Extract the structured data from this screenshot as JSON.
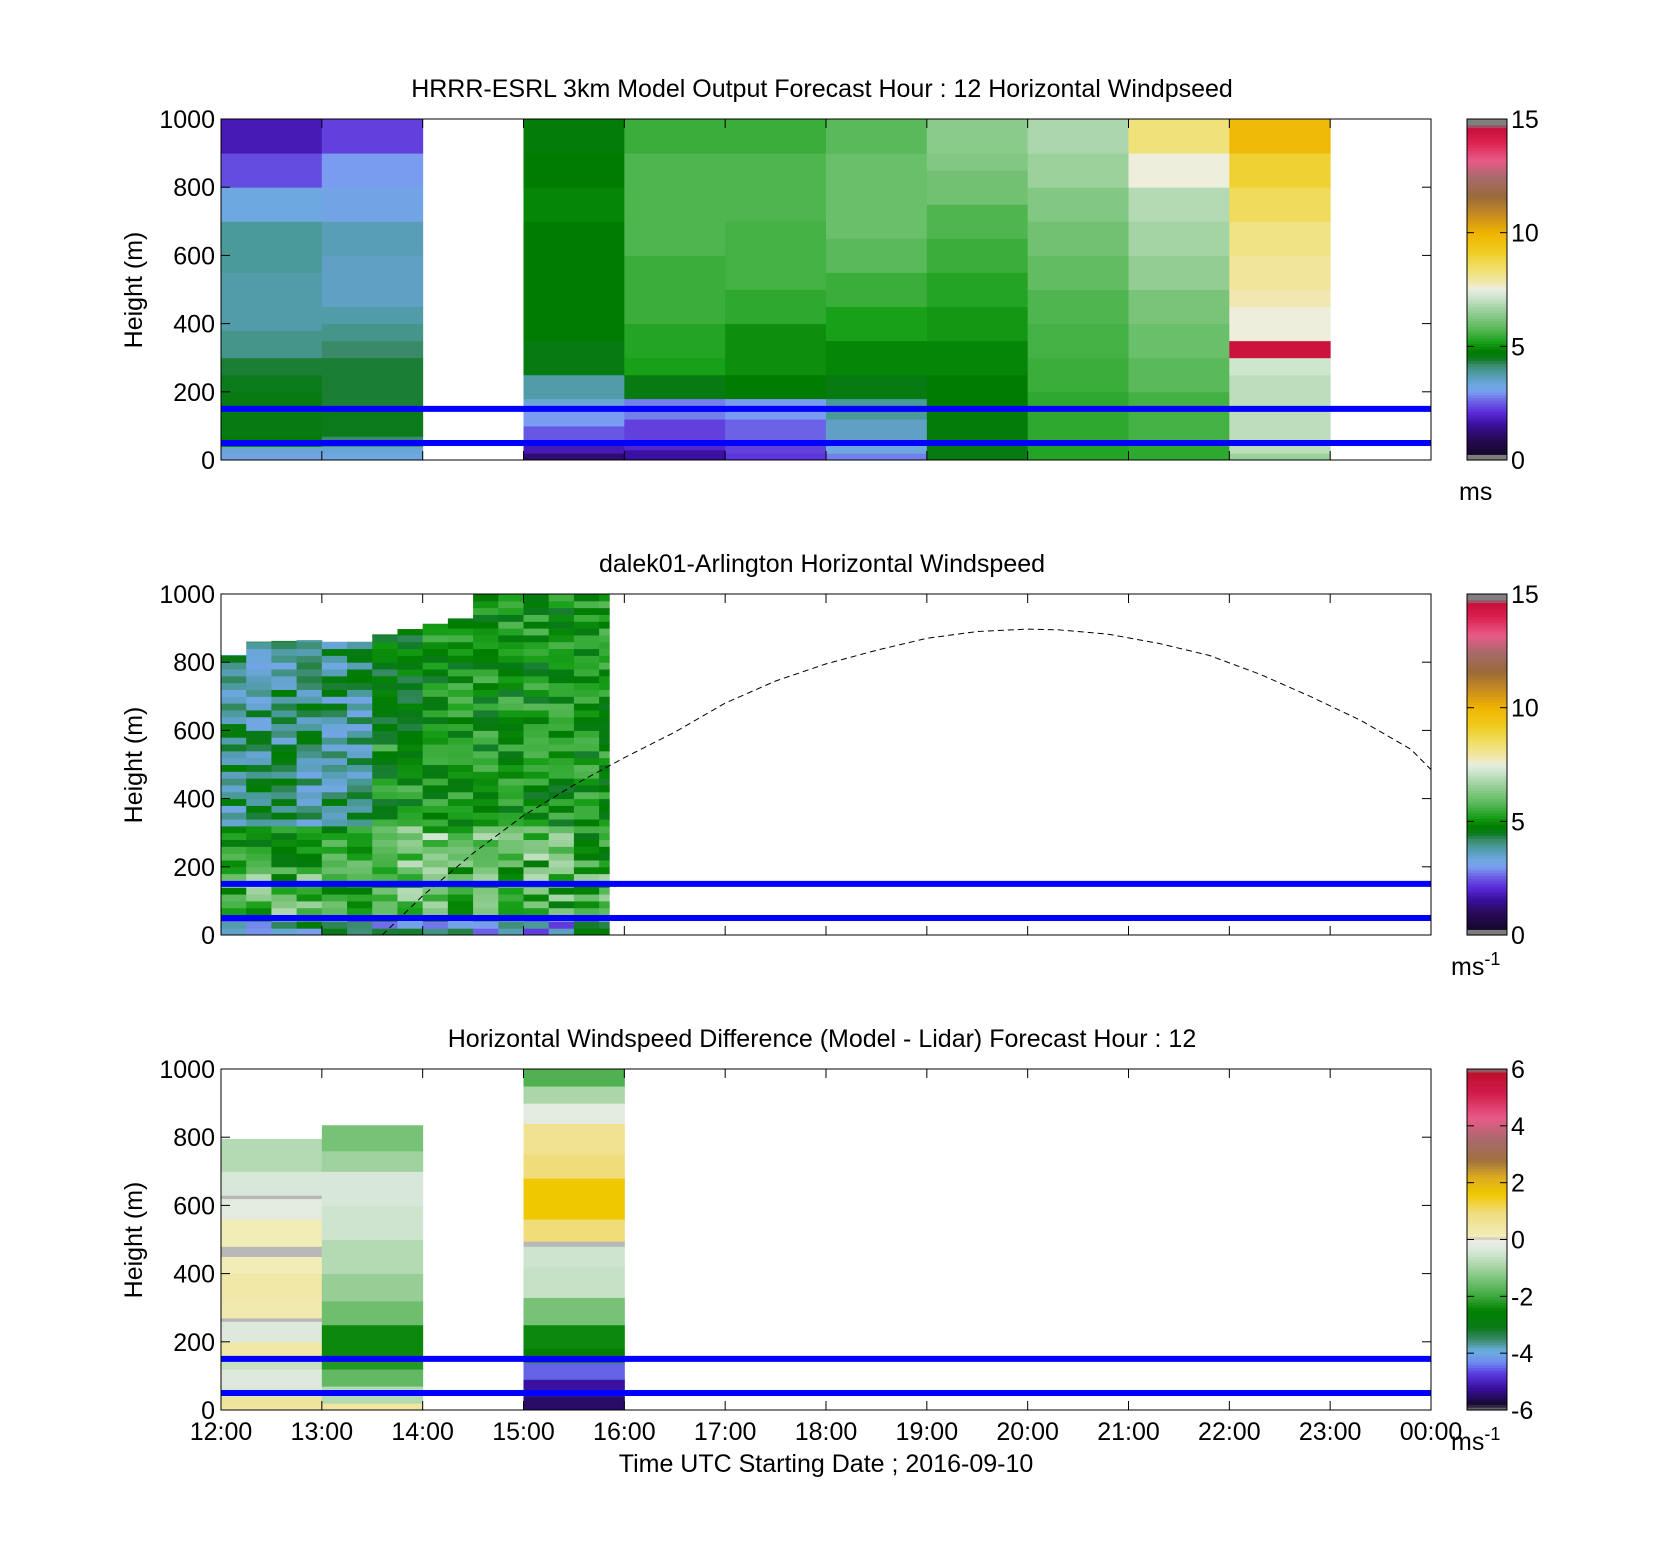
{
  "figure": {
    "xlabel": "Time UTC  Starting Date ; 2016-09-10",
    "time_ticks": [
      "12:00",
      "13:00",
      "14:00",
      "15:00",
      "16:00",
      "17:00",
      "18:00",
      "19:00",
      "20:00",
      "21:00",
      "22:00",
      "23:00",
      "00:00"
    ]
  },
  "chart_data": [
    {
      "type": "heatmap",
      "id": "model",
      "title": "HRRR-ESRL 3km Model Output   Forecast Hour : 12 Horizontal Windpseed",
      "ylabel": "Height (m)",
      "ylim": [
        0,
        1000
      ],
      "yticks": [
        "0",
        "200",
        "400",
        "600",
        "800",
        "1000"
      ],
      "x_range_hours_utc": [
        12,
        24
      ],
      "colorbar": {
        "ticks": [
          "0",
          "5",
          "10",
          "15"
        ],
        "range": [
          0,
          15
        ],
        "unit": "ms",
        "unit_sup": ""
      },
      "reference_lines_m": [
        150,
        50
      ],
      "columns": [
        {
          "x0": 12,
          "x1": 13,
          "cells": [
            [
              0,
              20,
              3.2
            ],
            [
              20,
              40,
              3.4
            ],
            [
              40,
              70,
              4.8
            ],
            [
              70,
              120,
              4.6
            ],
            [
              120,
              200,
              4.6
            ],
            [
              200,
              250,
              4.5
            ],
            [
              250,
              300,
              4.4
            ],
            [
              300,
              380,
              4.0
            ],
            [
              380,
              450,
              3.8
            ],
            [
              450,
              550,
              3.8
            ],
            [
              550,
              700,
              3.9
            ],
            [
              700,
              800,
              3.3
            ],
            [
              800,
              900,
              2.4
            ],
            [
              900,
              1000,
              1.8
            ]
          ]
        },
        {
          "x0": 13,
          "x1": 14,
          "cells": [
            [
              0,
              20,
              3.3
            ],
            [
              20,
              40,
              3.4
            ],
            [
              40,
              70,
              4.2
            ],
            [
              70,
              150,
              4.5
            ],
            [
              150,
              200,
              4.4
            ],
            [
              200,
              300,
              4.4
            ],
            [
              300,
              350,
              4.2
            ],
            [
              350,
              400,
              4.0
            ],
            [
              400,
              450,
              3.8
            ],
            [
              450,
              600,
              3.6
            ],
            [
              600,
              700,
              3.7
            ],
            [
              700,
              800,
              3.2
            ],
            [
              800,
              900,
              3.0
            ],
            [
              900,
              1000,
              2.3
            ]
          ]
        },
        {
          "x0": 15,
          "x1": 16,
          "cells": [
            [
              0,
              20,
              1.2
            ],
            [
              20,
              60,
              1.8
            ],
            [
              60,
              100,
              2.5
            ],
            [
              100,
              150,
              3.0
            ],
            [
              150,
              180,
              3.4
            ],
            [
              180,
              250,
              3.8
            ],
            [
              250,
              350,
              4.6
            ],
            [
              350,
              450,
              4.8
            ],
            [
              450,
              550,
              4.8
            ],
            [
              550,
              700,
              4.8
            ],
            [
              700,
              800,
              4.9
            ],
            [
              800,
              900,
              4.8
            ],
            [
              900,
              1000,
              4.7
            ]
          ]
        },
        {
          "x0": 16,
          "x1": 17,
          "cells": [
            [
              0,
              30,
              1.6
            ],
            [
              30,
              60,
              2.0
            ],
            [
              60,
              120,
              2.3
            ],
            [
              120,
              180,
              2.8
            ],
            [
              180,
              250,
              4.6
            ],
            [
              250,
              300,
              5.2
            ],
            [
              300,
              400,
              5.3
            ],
            [
              400,
              500,
              5.5
            ],
            [
              500,
              600,
              5.5
            ],
            [
              600,
              700,
              5.7
            ],
            [
              700,
              800,
              5.7
            ],
            [
              800,
              900,
              5.7
            ],
            [
              900,
              1000,
              5.5
            ]
          ]
        },
        {
          "x0": 17,
          "x1": 18,
          "cells": [
            [
              0,
              20,
              2.2
            ],
            [
              20,
              60,
              2.3
            ],
            [
              60,
              120,
              2.6
            ],
            [
              120,
              180,
              3.0
            ],
            [
              180,
              250,
              4.8
            ],
            [
              250,
              300,
              5.0
            ],
            [
              300,
              400,
              5.0
            ],
            [
              400,
              500,
              5.4
            ],
            [
              500,
              600,
              5.6
            ],
            [
              600,
              700,
              5.6
            ],
            [
              700,
              800,
              5.7
            ],
            [
              800,
              900,
              5.7
            ],
            [
              900,
              1000,
              5.5
            ]
          ]
        },
        {
          "x0": 18,
          "x1": 19,
          "cells": [
            [
              0,
              20,
              2.8
            ],
            [
              20,
              60,
              3.3
            ],
            [
              60,
              120,
              3.6
            ],
            [
              120,
              180,
              3.9
            ],
            [
              180,
              250,
              4.6
            ],
            [
              250,
              350,
              4.9
            ],
            [
              350,
              450,
              5.2
            ],
            [
              450,
              550,
              5.5
            ],
            [
              550,
              650,
              5.8
            ],
            [
              650,
              750,
              6.0
            ],
            [
              750,
              900,
              6.0
            ],
            [
              900,
              1000,
              5.8
            ]
          ]
        },
        {
          "x0": 19,
          "x1": 20,
          "cells": [
            [
              0,
              50,
              4.6
            ],
            [
              50,
              150,
              4.7
            ],
            [
              150,
              250,
              4.8
            ],
            [
              250,
              350,
              4.9
            ],
            [
              350,
              450,
              5.1
            ],
            [
              450,
              550,
              5.3
            ],
            [
              550,
              650,
              5.5
            ],
            [
              650,
              750,
              5.7
            ],
            [
              750,
              850,
              6.1
            ],
            [
              850,
              900,
              6.3
            ],
            [
              900,
              1000,
              6.4
            ]
          ]
        },
        {
          "x0": 20,
          "x1": 21,
          "cells": [
            [
              0,
              50,
              5.3
            ],
            [
              50,
              200,
              5.4
            ],
            [
              200,
              300,
              5.5
            ],
            [
              300,
              400,
              5.6
            ],
            [
              400,
              500,
              5.7
            ],
            [
              500,
              600,
              5.9
            ],
            [
              600,
              700,
              6.1
            ],
            [
              700,
              800,
              6.3
            ],
            [
              800,
              900,
              6.6
            ],
            [
              900,
              1000,
              6.8
            ]
          ]
        },
        {
          "x0": 21,
          "x1": 22,
          "cells": [
            [
              0,
              50,
              5.4
            ],
            [
              50,
              200,
              5.6
            ],
            [
              200,
              300,
              5.8
            ],
            [
              300,
              400,
              6.0
            ],
            [
              400,
              500,
              6.2
            ],
            [
              500,
              600,
              6.5
            ],
            [
              600,
              700,
              6.7
            ],
            [
              700,
              800,
              6.9
            ],
            [
              800,
              900,
              7.6
            ],
            [
              900,
              1000,
              8.3
            ]
          ]
        },
        {
          "x0": 22,
          "x1": 23,
          "cells": [
            [
              0,
              20,
              6.6
            ],
            [
              20,
              150,
              7.0
            ],
            [
              150,
              250,
              7.0
            ],
            [
              250,
              300,
              7.2
            ],
            [
              300,
              350,
              14.5
            ],
            [
              350,
              450,
              7.6
            ],
            [
              450,
              500,
              7.8
            ],
            [
              500,
              600,
              8.0
            ],
            [
              600,
              700,
              8.2
            ],
            [
              700,
              800,
              8.6
            ],
            [
              800,
              900,
              9.0
            ],
            [
              900,
              1000,
              9.8
            ]
          ]
        }
      ]
    },
    {
      "type": "heatmap",
      "id": "lidar",
      "title": "dalek01-Arlington  Horizontal Windspeed",
      "ylabel": "Height (m)",
      "ylim": [
        0,
        1000
      ],
      "yticks": [
        "0",
        "200",
        "400",
        "600",
        "800",
        "1000"
      ],
      "x_range_hours_utc": [
        12,
        24
      ],
      "colorbar": {
        "ticks": [
          "0",
          "5",
          "10",
          "15"
        ],
        "range": [
          0,
          15
        ],
        "unit": "ms",
        "unit_sup": "-1"
      },
      "reference_lines_m": [
        150,
        50
      ],
      "data_extent": {
        "x_hours_utc": [
          12,
          15.85
        ]
      },
      "top_edge_profile": [
        [
          12,
          800
        ],
        [
          12.35,
          860
        ],
        [
          12.9,
          865
        ],
        [
          13.1,
          860
        ],
        [
          13.4,
          860
        ],
        [
          13.6,
          880
        ],
        [
          14.0,
          905
        ],
        [
          14.4,
          930
        ],
        [
          14.6,
          1000
        ],
        [
          15.85,
          1000
        ]
      ],
      "dashed_curve": [
        [
          13.6,
          0
        ],
        [
          14.0,
          115
        ],
        [
          14.5,
          240
        ],
        [
          15.0,
          350
        ],
        [
          15.5,
          440
        ],
        [
          16.0,
          520
        ],
        [
          16.5,
          595
        ],
        [
          17.0,
          680
        ],
        [
          17.5,
          745
        ],
        [
          18.0,
          795
        ],
        [
          18.5,
          835
        ],
        [
          19.0,
          870
        ],
        [
          19.5,
          890
        ],
        [
          20.0,
          897
        ],
        [
          20.3,
          895
        ],
        [
          20.8,
          882
        ],
        [
          21.3,
          855
        ],
        [
          21.8,
          820
        ],
        [
          22.3,
          765
        ],
        [
          22.8,
          700
        ],
        [
          23.3,
          630
        ],
        [
          23.8,
          545
        ],
        [
          24.0,
          485
        ]
      ]
    },
    {
      "type": "heatmap",
      "id": "difference",
      "title": "Horizontal Windspeed Difference (Model - Lidar) Forecast Hour : 12",
      "ylabel": "Height (m)",
      "ylim": [
        0,
        1000
      ],
      "yticks": [
        "0",
        "200",
        "400",
        "600",
        "800",
        "1000"
      ],
      "x_range_hours_utc": [
        12,
        24
      ],
      "colorbar": {
        "ticks": [
          "-6",
          "-4",
          "-2",
          "0",
          "2",
          "4",
          "6"
        ],
        "range": [
          -6,
          6
        ],
        "unit": "ms",
        "unit_sup": "-1"
      },
      "reference_lines_m": [
        150,
        50
      ],
      "columns": [
        {
          "x0": 12,
          "x1": 13,
          "top": 795,
          "cells": [
            [
              0,
              20,
              0.5
            ],
            [
              20,
              40,
              0.6
            ],
            [
              40,
              70,
              -0.4
            ],
            [
              70,
              120,
              -0.3
            ],
            [
              120,
              160,
              -0.6
            ],
            [
              160,
              200,
              0.4
            ],
            [
              200,
              260,
              -0.3
            ],
            [
              260,
              270,
              0.0
            ],
            [
              270,
              330,
              0.3
            ],
            [
              330,
              400,
              0.4
            ],
            [
              400,
              450,
              0.2
            ],
            [
              450,
              480,
              0.0
            ],
            [
              480,
              560,
              0.2
            ],
            [
              560,
              620,
              -0.2
            ],
            [
              620,
              630,
              0.0
            ],
            [
              630,
              700,
              -0.4
            ],
            [
              700,
              795,
              -0.8
            ]
          ]
        },
        {
          "x0": 13,
          "x1": 14,
          "top": 835,
          "cells": [
            [
              0,
              20,
              0.5
            ],
            [
              20,
              70,
              -0.8
            ],
            [
              70,
              120,
              -1.6
            ],
            [
              120,
              150,
              -2.2
            ],
            [
              150,
              250,
              -2.4
            ],
            [
              250,
              320,
              -1.5
            ],
            [
              320,
              400,
              -1.1
            ],
            [
              400,
              500,
              -0.8
            ],
            [
              500,
              600,
              -0.5
            ],
            [
              600,
              700,
              -0.4
            ],
            [
              700,
              760,
              -1.0
            ],
            [
              760,
              835,
              -1.4
            ]
          ]
        },
        {
          "x0": 15,
          "x1": 16,
          "top": 1000,
          "cells": [
            [
              0,
              40,
              -5.5
            ],
            [
              40,
              90,
              -5.2
            ],
            [
              90,
              140,
              -4.5
            ],
            [
              140,
              180,
              -2.6
            ],
            [
              180,
              250,
              -2.4
            ],
            [
              250,
              330,
              -1.4
            ],
            [
              330,
              420,
              -0.6
            ],
            [
              420,
              480,
              -0.5
            ],
            [
              480,
              495,
              0.0
            ],
            [
              495,
              560,
              1.0
            ],
            [
              560,
              680,
              1.6
            ],
            [
              680,
              750,
              1.0
            ],
            [
              750,
              840,
              0.7
            ],
            [
              840,
              900,
              -0.2
            ],
            [
              900,
              950,
              -0.9
            ],
            [
              950,
              1000,
              -1.8
            ]
          ]
        }
      ]
    }
  ]
}
